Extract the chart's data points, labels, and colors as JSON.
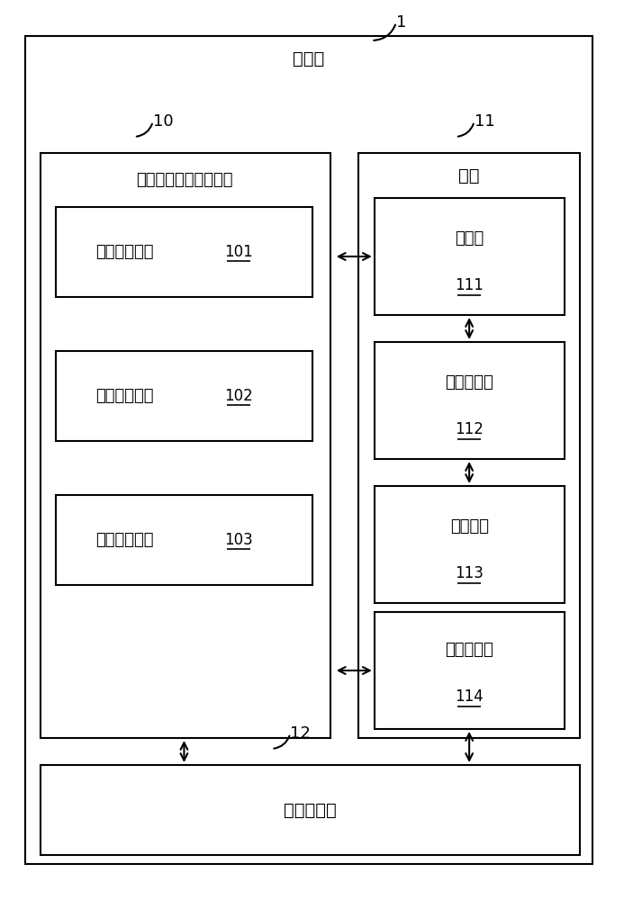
{
  "bg_color": "#ffffff",
  "line_color": "#000000",
  "title_label": "计算机",
  "label_1": "1",
  "label_10": "10",
  "label_11": "11",
  "label_12": "12",
  "left_title": "硬盘转速自动控制系统",
  "right_title": "硬盘",
  "cpu_title": "中央处理器",
  "module1_label": "硬盘侦测模块",
  "module1_num": "101",
  "module2_label": "转速检查模块",
  "module2_num": "102",
  "module3_label": "转速控制模块",
  "module3_num": "103",
  "sub1_label": "寄存器",
  "sub1_num": "111",
  "sub2_label": "信号发生器",
  "sub2_num": "112",
  "sub3_label": "转速马达",
  "sub3_num": "113",
  "sub4_label": "数据存储区",
  "sub4_num": "114",
  "font_size_title": 14,
  "font_size_module": 13,
  "font_size_num": 12
}
